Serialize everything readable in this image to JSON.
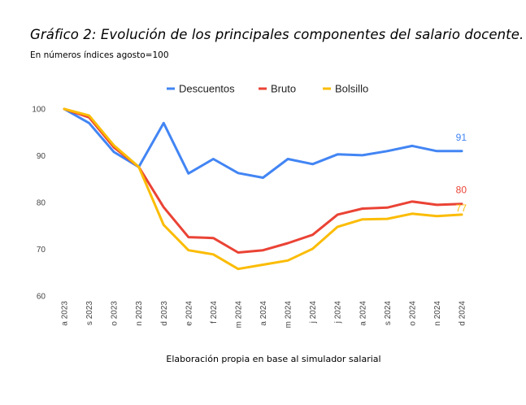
{
  "chart_data": {
    "type": "line",
    "title": "Gráfico 2: Evolución de los principales componentes del salario docente.",
    "subtitle": "En números índices agosto=100",
    "caption": "Elaboración propia en base al simulador salarial",
    "xlabel": "",
    "ylabel": "",
    "ylim": [
      60,
      100
    ],
    "yticks": [
      "100",
      "90",
      "80",
      "70",
      "60"
    ],
    "grid": false,
    "legend_position": "top-center",
    "categories": [
      "a 2023",
      "s 2023",
      "o 2023",
      "n 2023",
      "d 2023",
      "e 2024",
      "f 2024",
      "m 2024",
      "a 2024",
      "m 2024",
      "j 2024",
      "j 2024",
      "a 2024",
      "s 2024",
      "o 2024",
      "n 2024",
      "d 2024"
    ],
    "series": [
      {
        "name": "Descuentos",
        "color": "#4285f4",
        "values": [
          100,
          97.0,
          90.8,
          87.6,
          97.0,
          86.2,
          89.3,
          86.3,
          85.3,
          89.3,
          88.2,
          90.3,
          90.1,
          91.0,
          92.1,
          91.0,
          91.0
        ],
        "end_label": "91"
      },
      {
        "name": "Bruto",
        "color": "#ea4335",
        "values": [
          100,
          98.2,
          91.8,
          87.6,
          79.0,
          72.6,
          72.4,
          69.3,
          69.8,
          71.3,
          73.1,
          77.4,
          78.7,
          78.9,
          80.2,
          79.5,
          79.7
        ],
        "end_label": "80"
      },
      {
        "name": "Bolsillo",
        "color": "#fbbc04",
        "values": [
          100,
          98.6,
          92.2,
          87.6,
          75.2,
          69.8,
          68.9,
          65.8,
          66.7,
          67.6,
          70.1,
          74.8,
          76.4,
          76.5,
          77.6,
          77.1,
          77.4
        ],
        "end_label": "77"
      }
    ]
  }
}
